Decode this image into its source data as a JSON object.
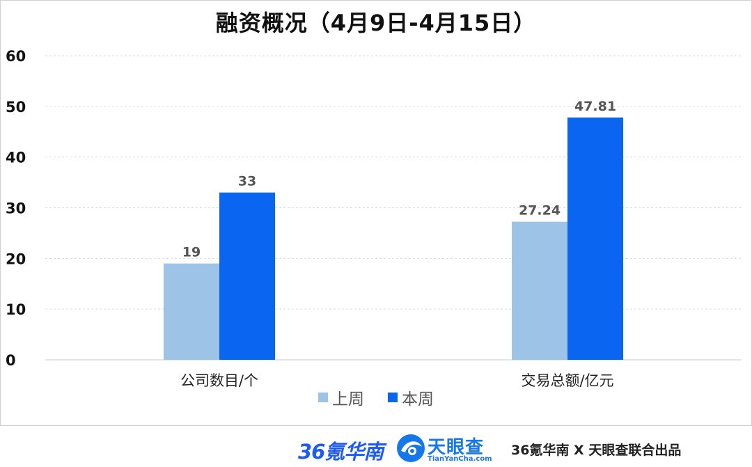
{
  "chart_data": {
    "type": "bar",
    "title": "融资概况（4月9日-4月15日）",
    "categories": [
      "公司数目/个",
      "交易总额/亿元"
    ],
    "series": [
      {
        "name": "上周",
        "color": "#9dc3e6",
        "values": [
          19,
          27.24
        ]
      },
      {
        "name": "本周",
        "color": "#0a66f0",
        "values": [
          33,
          47.81
        ]
      }
    ],
    "data_labels": [
      [
        "19",
        "27.24"
      ],
      [
        "33",
        "47.81"
      ]
    ],
    "ylim": [
      0,
      60
    ],
    "yticks": [
      0,
      10,
      20,
      30,
      40,
      50,
      60
    ],
    "grid": true,
    "legend_position": "bottom"
  },
  "footer": {
    "logo_36kr": "36氪华南",
    "logo_tianyancha_name": "天眼查",
    "logo_tianyancha_domain": "TianYanCha.com",
    "credit": "36氪华南 X 天眼查联合出品"
  }
}
